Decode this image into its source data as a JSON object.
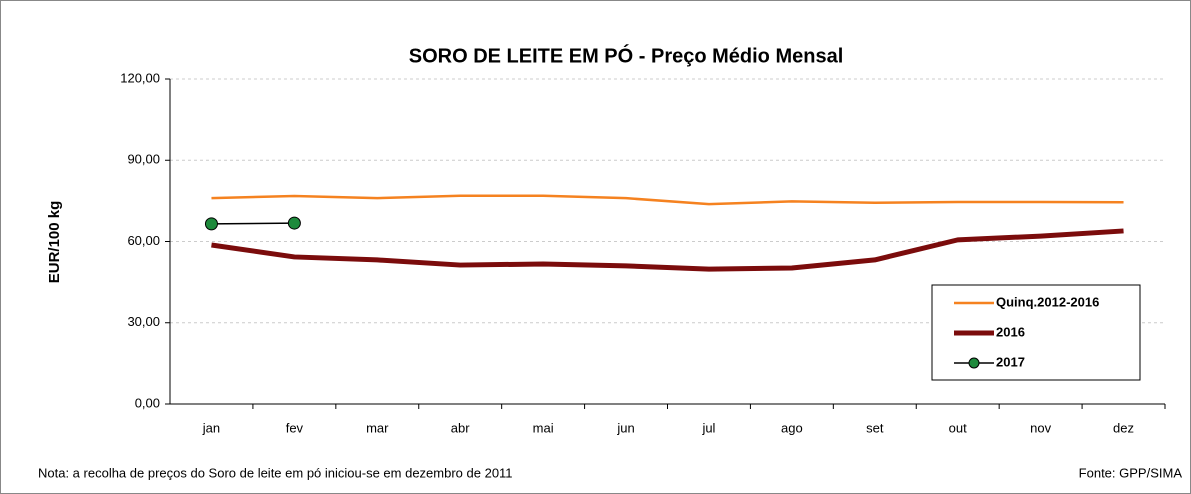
{
  "chart_data": {
    "type": "line",
    "title": "SORO DE LEITE EM PÓ - Preço Médio Mensal",
    "y_label": "EUR/100 kg",
    "categories": [
      "jan",
      "fev",
      "mar",
      "abr",
      "mai",
      "jun",
      "jul",
      "ago",
      "set",
      "out",
      "nov",
      "dez"
    ],
    "series": [
      {
        "name": "Quinq.2012-2016",
        "color": "#f58220",
        "values": [
          76,
          76.8,
          76,
          76.9,
          76.9,
          76,
          73.8,
          74.8,
          74.3,
          74.6,
          74.6,
          74.5
        ]
      },
      {
        "name": "2016",
        "color": "#7b0c0c",
        "values": [
          58.7,
          54.3,
          53.2,
          51.3,
          51.7,
          51,
          49.8,
          50.2,
          53.2,
          60.6,
          62,
          63.9
        ]
      },
      {
        "name": "2017",
        "color": "#000000",
        "marker_color": "#1e8a3c",
        "values": [
          66.5,
          66.8,
          null,
          null,
          null,
          null,
          null,
          null,
          null,
          null,
          null,
          null
        ]
      }
    ],
    "ylim": [
      0,
      120
    ],
    "yticks": [
      {
        "value": 0,
        "label": "0,00"
      },
      {
        "value": 30,
        "label": "30,00"
      },
      {
        "value": 60,
        "label": "60,00"
      },
      {
        "value": 90,
        "label": "90,00"
      },
      {
        "value": 120,
        "label": "120,00"
      }
    ],
    "grid": true,
    "legend": "lower right",
    "note": "Nota: a recolha de preços do Soro de leite em pó iniciou-se em dezembro de 2011",
    "source": "Fonte: GPP/SIMA"
  }
}
